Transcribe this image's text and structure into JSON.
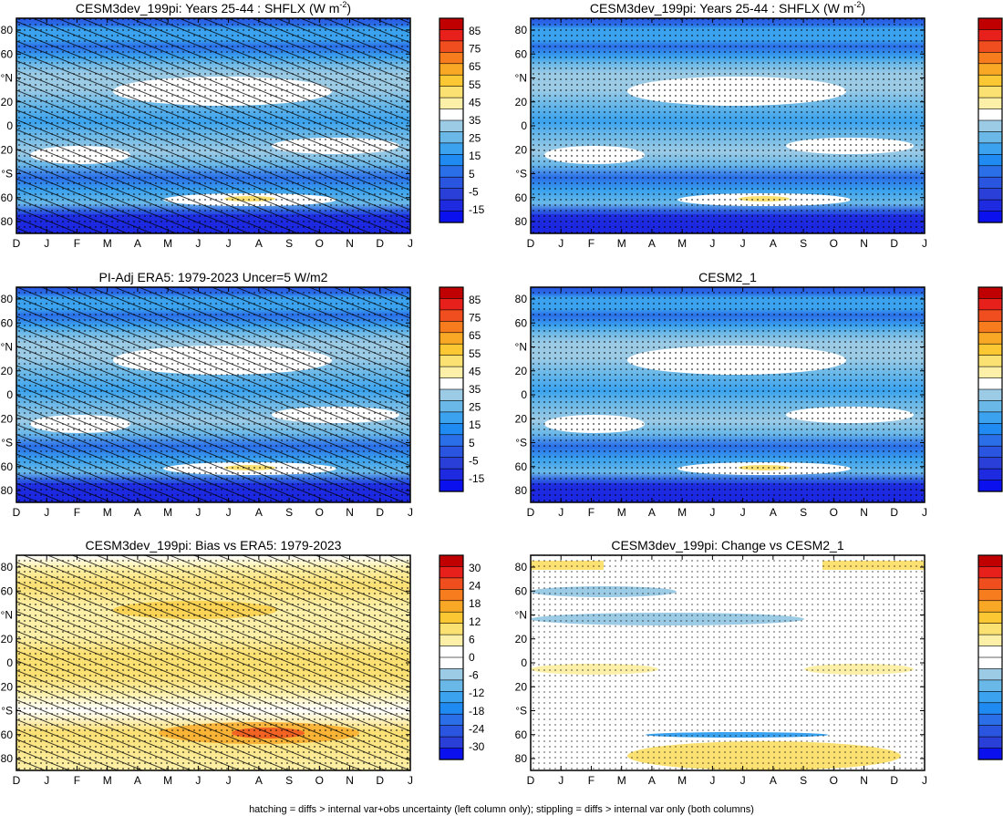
{
  "months": [
    "D",
    "J",
    "F",
    "M",
    "A",
    "M",
    "J",
    "J",
    "A",
    "S",
    "O",
    "N",
    "D",
    "J"
  ],
  "lat_ticks": [
    "80",
    "60",
    "°N",
    "20",
    "0",
    "20",
    "°S",
    "60",
    "80"
  ],
  "abs_colorbar": {
    "labels": [
      "85",
      "75",
      "65",
      "55",
      "45",
      "35",
      "25",
      "15",
      "5",
      "-5",
      "-15"
    ],
    "colors": [
      "#c00000",
      "#e8201c",
      "#f04e1e",
      "#f77c1e",
      "#f9a825",
      "#fbc733",
      "#fbe072",
      "#fcf0a8",
      "#ffffff",
      "#9ccbe6",
      "#6ab8e8",
      "#3aa2ee",
      "#1f8af1",
      "#2a6ee8",
      "#2a55e0",
      "#2a3fd8",
      "#1d2adf",
      "#0a10ee"
    ]
  },
  "diff_colorbar": {
    "labels": [
      "30",
      "24",
      "18",
      "12",
      "6",
      "0",
      "-6",
      "-12",
      "-18",
      "-24",
      "-30"
    ],
    "colors": [
      "#c00000",
      "#e8201c",
      "#f04e1e",
      "#f77c1e",
      "#f9a825",
      "#fbc733",
      "#fbe072",
      "#fcf0a8",
      "#ffffff",
      "#ffffff",
      "#9ccbe6",
      "#6ab8e8",
      "#3aa2ee",
      "#1f8af1",
      "#2a6ee8",
      "#2a55e0",
      "#2a3fd8",
      "#0a10ee"
    ]
  },
  "chart_data": [
    {
      "type": "heatmap",
      "title": "CESM3dev_199pi: Years 25-44 : SHFLX (W m",
      "title_sup": "-2",
      "title_end": ")",
      "x": "month (D-J)",
      "y": "latitude",
      "field": "surface sensible heat flux (W m-2)",
      "color_range": [
        -15,
        85
      ],
      "hatching": true,
      "stippling": true
    },
    {
      "type": "heatmap",
      "title": "CESM3dev_199pi: Years 25-44 : SHFLX (W m",
      "title_sup": "-2",
      "title_end": ")",
      "x": "month (D-J)",
      "y": "latitude",
      "field": "surface sensible heat flux (W m-2)",
      "color_range": [
        -15,
        85
      ],
      "hatching": false,
      "stippling": true
    },
    {
      "type": "heatmap",
      "title": "PI-Adj ERA5: 1979-2023 Uncer=5 W/m2",
      "x": "month (D-J)",
      "y": "latitude",
      "field": "surface sensible heat flux (W m-2)",
      "color_range": [
        -15,
        85
      ],
      "hatching": true,
      "stippling": true
    },
    {
      "type": "heatmap",
      "title": "CESM2_1",
      "x": "month (D-J)",
      "y": "latitude",
      "field": "surface sensible heat flux (W m-2)",
      "color_range": [
        -15,
        85
      ],
      "hatching": false,
      "stippling": true
    },
    {
      "type": "heatmap",
      "title": "CESM3dev_199pi: Bias vs ERA5: 1979-2023",
      "x": "month (D-J)",
      "y": "latitude",
      "field": "difference (W m-2)",
      "color_range": [
        -30,
        30
      ],
      "hatching": true,
      "stippling": true
    },
    {
      "type": "heatmap",
      "title": "CESM3dev_199pi: Change vs CESM2_1",
      "x": "month (D-J)",
      "y": "latitude",
      "field": "difference (W m-2)",
      "color_range": [
        -30,
        30
      ],
      "hatching": false,
      "stippling": true
    }
  ],
  "footnote": "hatching = diffs > internal var+obs uncertainty (left column only); stippling = diffs > internal var only (both columns)"
}
